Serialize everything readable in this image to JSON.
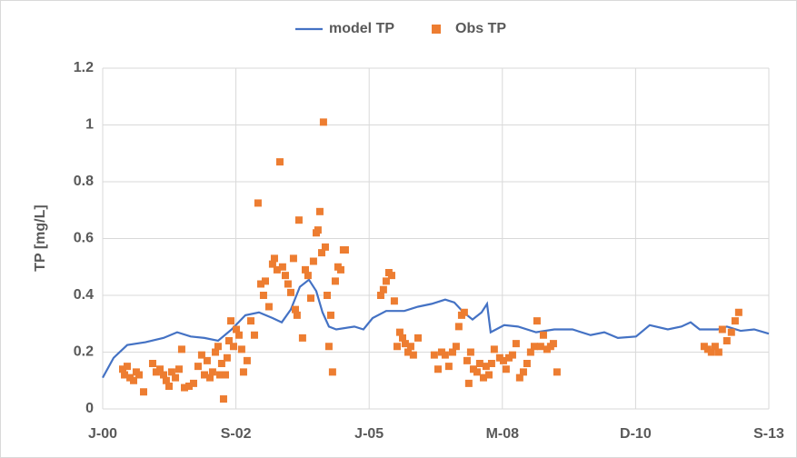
{
  "chart_data": {
    "type": "line_scatter",
    "ylabel": "TP [mg/L]",
    "xlim": [
      36526,
      41526
    ],
    "xticks": [
      {
        "value": 36526,
        "label": "J-00"
      },
      {
        "value": 37526,
        "label": "S-02"
      },
      {
        "value": 38526,
        "label": "J-05"
      },
      {
        "value": 39526,
        "label": "M-08"
      },
      {
        "value": 40526,
        "label": "D-10"
      },
      {
        "value": 41526,
        "label": "S-13"
      }
    ],
    "ylim": [
      0,
      1.2
    ],
    "yticks": [
      0,
      0.2,
      0.4,
      0.6,
      0.8,
      1,
      1.2
    ],
    "grid": true,
    "legend": "top",
    "series": [
      {
        "name": "model TP",
        "type": "line",
        "color": "#4472c4",
        "x": [
          36526,
          36608,
          36710,
          36847,
          36983,
          37085,
          37187,
          37290,
          37392,
          37494,
          37597,
          37699,
          37801,
          37870,
          37938,
          38006,
          38074,
          38129,
          38176,
          38224,
          38279,
          38415,
          38483,
          38552,
          38654,
          38790,
          38893,
          38995,
          39097,
          39165,
          39234,
          39302,
          39370,
          39411,
          39438,
          39540,
          39643,
          39779,
          39916,
          40052,
          40188,
          40291,
          40393,
          40529,
          40632,
          40768,
          40870,
          40939,
          41007,
          41143,
          41211,
          41314,
          41416,
          41526
        ],
        "values": [
          0.11,
          0.18,
          0.225,
          0.235,
          0.25,
          0.27,
          0.255,
          0.25,
          0.24,
          0.28,
          0.33,
          0.34,
          0.32,
          0.305,
          0.35,
          0.43,
          0.455,
          0.415,
          0.34,
          0.29,
          0.28,
          0.29,
          0.28,
          0.32,
          0.345,
          0.345,
          0.36,
          0.37,
          0.385,
          0.375,
          0.34,
          0.315,
          0.34,
          0.37,
          0.27,
          0.295,
          0.29,
          0.27,
          0.28,
          0.28,
          0.26,
          0.27,
          0.25,
          0.255,
          0.295,
          0.28,
          0.29,
          0.305,
          0.28,
          0.28,
          0.29,
          0.275,
          0.28,
          0.265
        ]
      },
      {
        "name": "Obs TP",
        "type": "scatter",
        "color": "#ed7d31",
        "x": [
          36676,
          36690,
          36710,
          36731,
          36758,
          36778,
          36799,
          36833,
          36901,
          36928,
          36956,
          36983,
          37003,
          37024,
          37044,
          37072,
          37099,
          37119,
          37140,
          37174,
          37208,
          37242,
          37269,
          37290,
          37310,
          37331,
          37351,
          37372,
          37392,
          37406,
          37419,
          37433,
          37447,
          37460,
          37474,
          37488,
          37508,
          37529,
          37549,
          37569,
          37583,
          37610,
          37638,
          37665,
          37692,
          37713,
          37733,
          37747,
          37774,
          37801,
          37815,
          37835,
          37856,
          37876,
          37897,
          37917,
          37938,
          37958,
          37972,
          37985,
          37999,
          38026,
          38047,
          38067,
          38088,
          38108,
          38129,
          38142,
          38156,
          38170,
          38183,
          38197,
          38211,
          38224,
          38238,
          38251,
          38272,
          38292,
          38313,
          38333,
          38347,
          38613,
          38633,
          38654,
          38674,
          38695,
          38715,
          38736,
          38756,
          38777,
          38797,
          38818,
          38838,
          38858,
          38893,
          39015,
          39043,
          39070,
          39097,
          39124,
          39152,
          39179,
          39199,
          39220,
          39240,
          39261,
          39274,
          39288,
          39309,
          39336,
          39356,
          39384,
          39404,
          39425,
          39445,
          39465,
          39506,
          39534,
          39554,
          39575,
          39602,
          39629,
          39656,
          39684,
          39711,
          39738,
          39766,
          39786,
          39813,
          39834,
          39861,
          39888,
          39909,
          39936,
          41041,
          41068,
          41095,
          41123,
          41150,
          41177,
          41211,
          41245,
          41273,
          41300
        ],
        "values": [
          0.14,
          0.12,
          0.15,
          0.11,
          0.1,
          0.13,
          0.12,
          0.06,
          0.16,
          0.13,
          0.14,
          0.12,
          0.1,
          0.08,
          0.13,
          0.11,
          0.14,
          0.21,
          0.075,
          0.08,
          0.09,
          0.15,
          0.19,
          0.12,
          0.17,
          0.11,
          0.13,
          0.2,
          0.22,
          0.12,
          0.16,
          0.035,
          0.12,
          0.18,
          0.24,
          0.31,
          0.22,
          0.28,
          0.26,
          0.21,
          0.13,
          0.17,
          0.31,
          0.26,
          0.725,
          0.44,
          0.4,
          0.45,
          0.36,
          0.51,
          0.53,
          0.49,
          0.87,
          0.5,
          0.47,
          0.44,
          0.41,
          0.53,
          0.35,
          0.33,
          0.665,
          0.25,
          0.49,
          0.47,
          0.39,
          0.52,
          0.62,
          0.63,
          0.695,
          0.55,
          1.01,
          0.57,
          0.4,
          0.22,
          0.33,
          0.13,
          0.45,
          0.5,
          0.49,
          0.56,
          0.56,
          0.4,
          0.42,
          0.45,
          0.48,
          0.47,
          0.38,
          0.22,
          0.27,
          0.25,
          0.23,
          0.2,
          0.22,
          0.19,
          0.25,
          0.19,
          0.14,
          0.2,
          0.19,
          0.15,
          0.2,
          0.22,
          0.29,
          0.33,
          0.34,
          0.17,
          0.09,
          0.2,
          0.14,
          0.13,
          0.16,
          0.11,
          0.15,
          0.12,
          0.16,
          0.21,
          0.18,
          0.17,
          0.14,
          0.18,
          0.19,
          0.23,
          0.11,
          0.13,
          0.16,
          0.2,
          0.22,
          0.31,
          0.22,
          0.26,
          0.21,
          0.22,
          0.23,
          0.13,
          0.22,
          0.21,
          0.2,
          0.22,
          0.2,
          0.28,
          0.24,
          0.27,
          0.31,
          0.34
        ]
      }
    ]
  }
}
